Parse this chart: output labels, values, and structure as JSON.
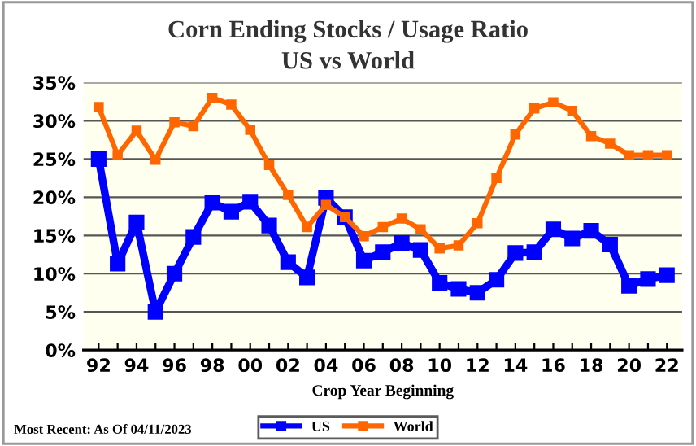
{
  "chart_data": {
    "type": "line",
    "title": "Corn Ending Stocks / Usage Ratio",
    "subtitle": "US vs World",
    "xlabel": "Crop Year Beginning",
    "categories": [
      "92",
      null,
      "94",
      null,
      "96",
      null,
      "98",
      null,
      "00",
      null,
      "02",
      null,
      "04",
      null,
      "06",
      null,
      "08",
      null,
      "10",
      null,
      "12",
      null,
      "14",
      null,
      "16",
      null,
      "18",
      null,
      "20",
      null,
      "22"
    ],
    "series": [
      {
        "name": "US",
        "color": "#0000ff",
        "values": [
          25.0,
          11.3,
          16.7,
          5.0,
          10.0,
          14.8,
          19.3,
          18.1,
          19.4,
          16.3,
          11.5,
          9.5,
          19.9,
          17.4,
          11.7,
          12.8,
          14.0,
          13.1,
          8.8,
          8.0,
          7.5,
          9.2,
          12.7,
          12.8,
          15.8,
          14.6,
          15.6,
          13.8,
          8.4,
          9.3,
          9.8
        ]
      },
      {
        "name": "World",
        "color": "#ff6600",
        "values": [
          31.8,
          25.5,
          28.7,
          24.9,
          29.8,
          29.3,
          33.0,
          32.1,
          28.8,
          24.2,
          20.3,
          16.1,
          19.0,
          17.4,
          14.9,
          16.1,
          17.2,
          15.8,
          13.3,
          13.7,
          16.6,
          22.5,
          28.2,
          31.6,
          32.4,
          31.3,
          28.0,
          27.0,
          25.5,
          25.5,
          25.5
        ]
      }
    ],
    "ylim": [
      0,
      35
    ],
    "yticks": [
      {
        "value": 0,
        "label": "0%"
      },
      {
        "value": 5,
        "label": "5%"
      },
      {
        "value": 10,
        "label": "10%"
      },
      {
        "value": 15,
        "label": "15%"
      },
      {
        "value": 20,
        "label": "20%"
      },
      {
        "value": 25,
        "label": "25%"
      },
      {
        "value": 30,
        "label": "30%"
      },
      {
        "value": 35,
        "label": "35%"
      }
    ],
    "grid": "y",
    "legend": "bottom",
    "marker": "square",
    "line_style": "solid",
    "annotations": [
      "Most Recent: As Of 04/11/2023"
    ]
  }
}
